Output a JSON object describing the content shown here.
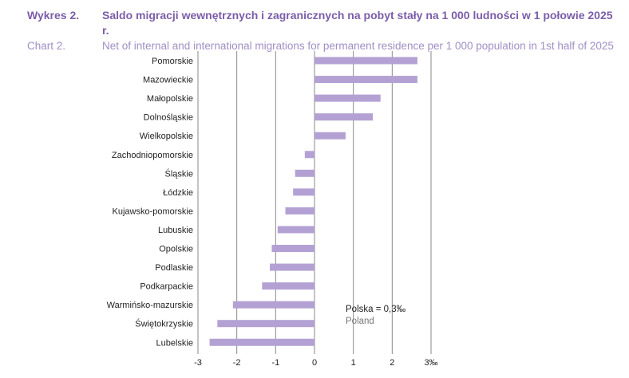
{
  "header": {
    "pl_label": "Wykres 2.",
    "pl_title": "Saldo migracji wewnętrznych i zagranicznych na pobyt stały na 1 000 ludności w 1 połowie 2025 r.",
    "en_label": "Chart 2.",
    "en_title": "Net of internal and international migrations for permanent residence per 1 000 population in 1st half of 2025"
  },
  "annotation": {
    "line1": "Polska = 0,3‰",
    "line2": "Poland"
  },
  "colors": {
    "bar": "#b4a1d4",
    "grid": "#8a8a8a",
    "title": "#7b5da8",
    "subtitle": "#a08fc4"
  },
  "chart_data": {
    "type": "bar",
    "orientation": "horizontal",
    "categories": [
      "Pomorskie",
      "Mazowieckie",
      "Małopolskie",
      "Dolnośląskie",
      "Wielkopolskie",
      "Zachodniopomorskie",
      "Śląskie",
      "Łódzkie",
      "Kujawsko-pomorskie",
      "Lubuskie",
      "Opolskie",
      "Podlaskie",
      "Podkarpackie",
      "Warmińsko-mazurskie",
      "Świętokrzyskie",
      "Lubelskie"
    ],
    "values": [
      2.65,
      2.65,
      1.7,
      1.5,
      0.8,
      -0.25,
      -0.5,
      -0.55,
      -0.75,
      -0.95,
      -1.1,
      -1.15,
      -1.35,
      -2.1,
      -2.5,
      -2.7
    ],
    "xlim": [
      -3,
      3
    ],
    "ticks": [
      "-3",
      "-2",
      "-1",
      "0",
      "1",
      "2",
      "3‰"
    ],
    "grid": true
  }
}
